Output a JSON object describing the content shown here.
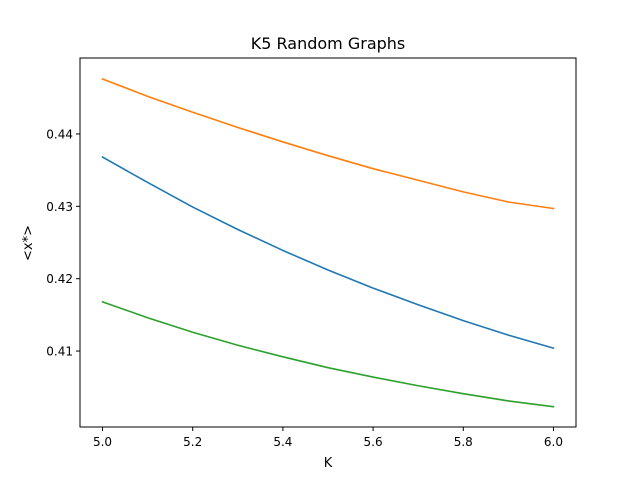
{
  "chart_data": {
    "type": "line",
    "title": "K5 Random Graphs",
    "xlabel": "K",
    "ylabel": "<x*>",
    "xlim": [
      4.95,
      6.05
    ],
    "ylim": [
      0.3995,
      0.4505
    ],
    "xticks": [
      5.0,
      5.2,
      5.4,
      5.6,
      5.8,
      6.0
    ],
    "xtick_labels": [
      "5.0",
      "5.2",
      "5.4",
      "5.6",
      "5.8",
      "6.0"
    ],
    "yticks": [
      0.41,
      0.42,
      0.43,
      0.44
    ],
    "ytick_labels": [
      "0.41",
      "0.42",
      "0.43",
      "0.44"
    ],
    "grid": false,
    "x": [
      5.0,
      5.1,
      5.2,
      5.3,
      5.4,
      5.5,
      5.6,
      5.7,
      5.8,
      5.9,
      6.0
    ],
    "series": [
      {
        "color": "#1f77b4",
        "values": [
          0.4368,
          0.4333,
          0.4299,
          0.4268,
          0.4239,
          0.4212,
          0.4187,
          0.4164,
          0.4142,
          0.4122,
          0.4104
        ]
      },
      {
        "color": "#ff7f0e",
        "values": [
          0.4476,
          0.4452,
          0.443,
          0.4409,
          0.4389,
          0.437,
          0.4352,
          0.4336,
          0.432,
          0.4306,
          0.4297
        ]
      },
      {
        "color": "#2ca02c",
        "values": [
          0.4168,
          0.4146,
          0.4126,
          0.4108,
          0.4092,
          0.4077,
          0.4064,
          0.4052,
          0.4041,
          0.4031,
          0.4023
        ]
      }
    ]
  }
}
